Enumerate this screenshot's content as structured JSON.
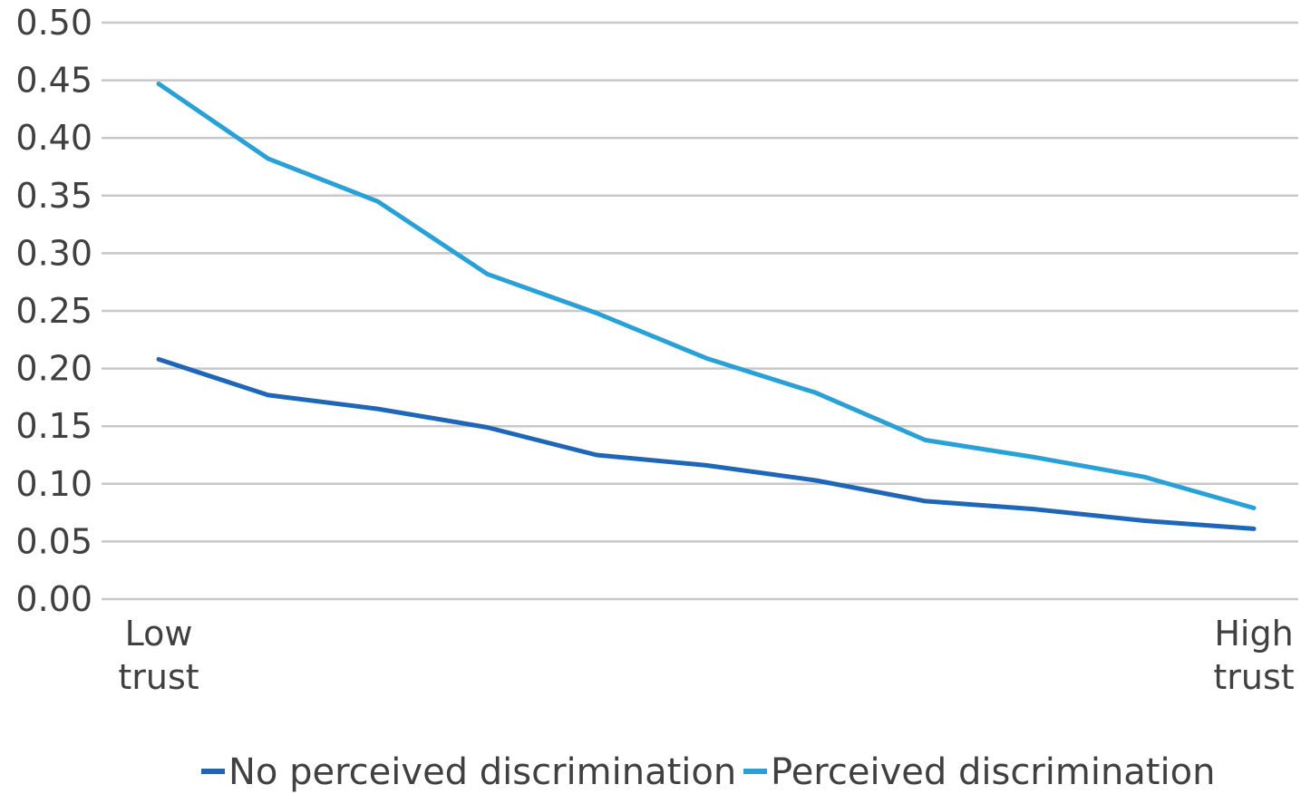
{
  "chart_data": {
    "type": "line",
    "title": "",
    "xlabel": "",
    "ylabel": "",
    "x": [
      1,
      2,
      3,
      4,
      5,
      6,
      7,
      8,
      9,
      10,
      11
    ],
    "x_tick_labels": [
      {
        "index": 0,
        "lines": [
          "Low",
          "trust"
        ]
      },
      {
        "index": 10,
        "lines": [
          "High",
          "trust"
        ]
      }
    ],
    "y_ticks": [
      "0.00",
      "0.05",
      "0.10",
      "0.15",
      "0.20",
      "0.25",
      "0.30",
      "0.35",
      "0.40",
      "0.45",
      "0.50"
    ],
    "ylim": [
      0,
      0.5
    ],
    "grid": true,
    "legend_position": "bottom",
    "series": [
      {
        "name": "No perceived discrimination",
        "color": "#1f66b8",
        "values": [
          0.208,
          0.177,
          0.165,
          0.149,
          0.125,
          0.116,
          0.103,
          0.085,
          0.078,
          0.068,
          0.061
        ]
      },
      {
        "name": "Perceived discrimination",
        "color": "#2aa1d6",
        "values": [
          0.447,
          0.382,
          0.345,
          0.282,
          0.248,
          0.209,
          0.179,
          0.138,
          0.123,
          0.106,
          0.079
        ]
      }
    ]
  }
}
